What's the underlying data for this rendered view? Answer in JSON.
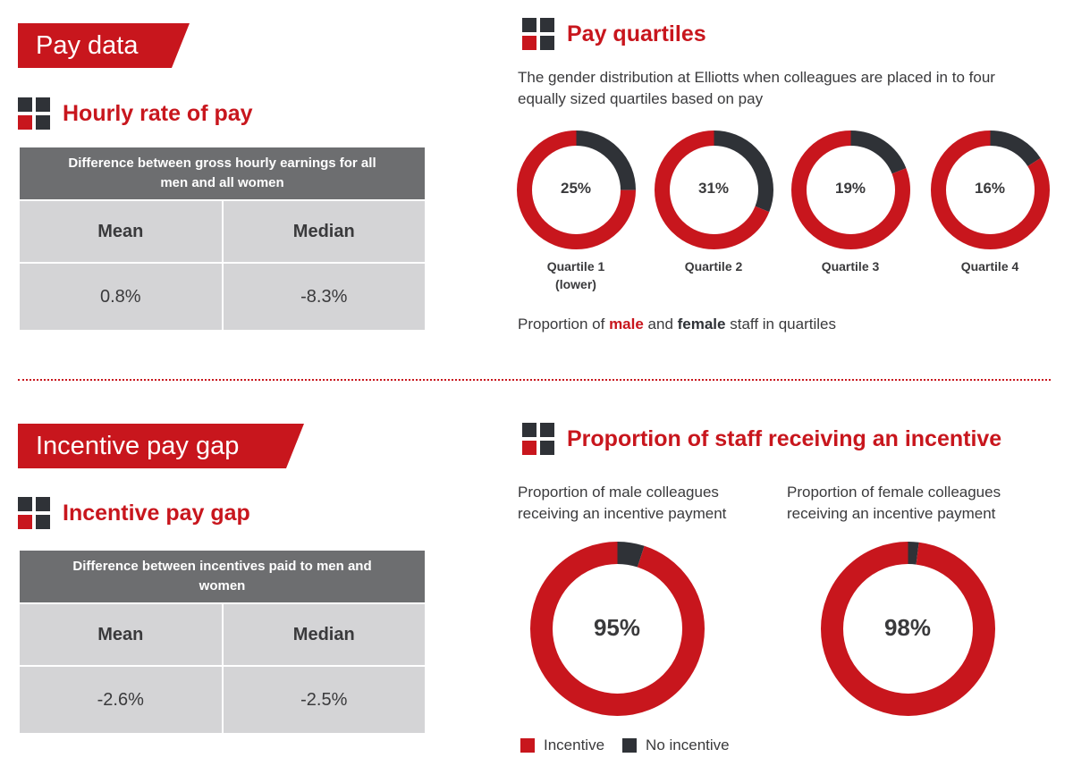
{
  "colors": {
    "accent": "#c8161d",
    "dark": "#2f3237",
    "header_gray": "#6d6e70",
    "cell_gray": "#d4d4d6"
  },
  "pay_data": {
    "banner": "Pay data",
    "heading": "Hourly rate of pay",
    "table": {
      "header": "Difference between gross hourly earnings for all men and all women",
      "columns": [
        "Mean",
        "Median"
      ],
      "values": [
        "0.8%",
        "-8.3%"
      ]
    }
  },
  "pay_quartiles": {
    "heading": "Pay quartiles",
    "description": "The gender distribution at Elliotts when colleagues are placed in to four equally sized quartiles based on pay",
    "caption_prefix": "Proportion of ",
    "caption_male": "male",
    "caption_mid": " and ",
    "caption_female": "female",
    "caption_suffix": " staff in quartiles"
  },
  "incentive": {
    "banner": "Incentive pay gap",
    "heading": "Incentive pay gap",
    "table": {
      "header": "Difference between incentives paid to men and women",
      "columns": [
        "Mean",
        "Median"
      ],
      "values": [
        "-2.6%",
        "-2.5%"
      ]
    }
  },
  "incentive_proportion": {
    "heading": "Proportion of staff receiving an incentive",
    "male_caption": "Proportion of male colleagues receiving an incentive payment",
    "female_caption": "Proportion of female colleagues receiving an incentive payment",
    "legend": [
      {
        "label": "Incentive",
        "color": "#c8161d"
      },
      {
        "label": "No incentive",
        "color": "#2f3237"
      }
    ]
  },
  "chart_data": [
    {
      "type": "pie",
      "title": "Pay quartiles",
      "categories": [
        "Quartile 1 (lower)",
        "Quartile 2",
        "Quartile 3",
        "Quartile 4"
      ],
      "series": [
        {
          "name": "female",
          "values": [
            25,
            31,
            19,
            16
          ],
          "color": "#2f3237"
        },
        {
          "name": "male",
          "values": [
            75,
            69,
            81,
            84
          ],
          "color": "#c8161d"
        }
      ],
      "center_labels": [
        "25%",
        "31%",
        "19%",
        "16%"
      ],
      "quartile_labels": [
        [
          "Quartile 1",
          "(lower)"
        ],
        [
          "Quartile 2"
        ],
        [
          "Quartile 3"
        ],
        [
          "Quartile 4"
        ]
      ]
    },
    {
      "type": "pie",
      "title": "Proportion of staff receiving an incentive",
      "categories": [
        "male",
        "female"
      ],
      "series": [
        {
          "name": "Incentive",
          "values": [
            95,
            98
          ],
          "color": "#c8161d"
        },
        {
          "name": "No incentive",
          "values": [
            5,
            2
          ],
          "color": "#2f3237"
        }
      ],
      "center_labels": [
        "95%",
        "98%"
      ]
    }
  ]
}
